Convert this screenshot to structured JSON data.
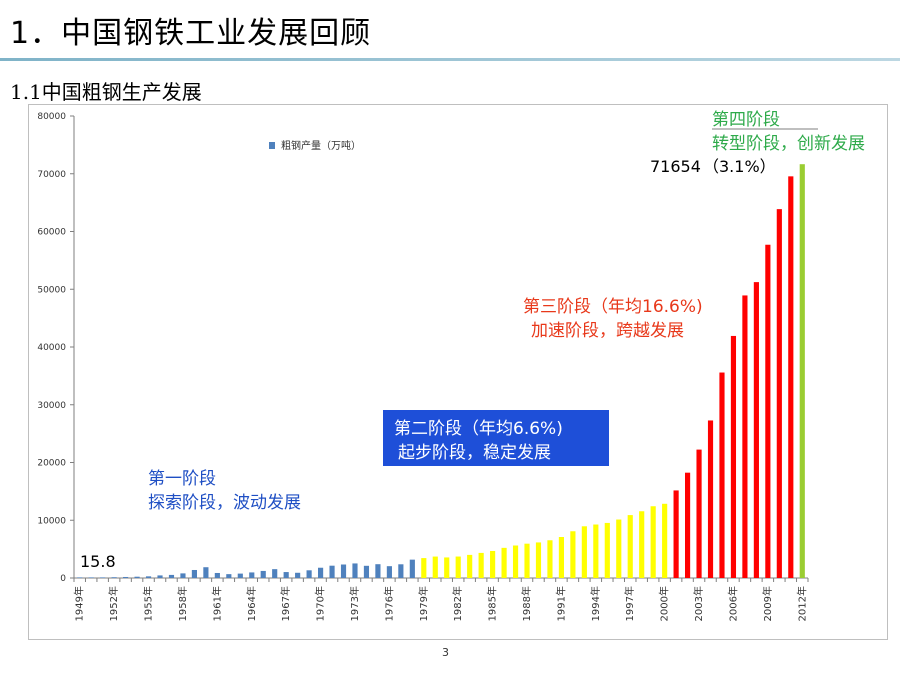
{
  "slide": {
    "title": "1．中国钢铁工业发展回顾",
    "subtitle": "1.1中国粗钢生产发展",
    "page_number": "3"
  },
  "chart_data": {
    "type": "bar",
    "legend": {
      "label": "粗钢产量（万吨）",
      "position": "top",
      "color": "#4f81bd"
    },
    "ylim": [
      0,
      80000
    ],
    "yticks": [
      0,
      10000,
      20000,
      30000,
      40000,
      50000,
      60000,
      70000,
      80000
    ],
    "grid": false,
    "xtick_labels": [
      "1949年",
      "1952年",
      "1955年",
      "1958年",
      "1961年",
      "1964年",
      "1967年",
      "1970年",
      "1973年",
      "1976年",
      "1979年",
      "1982年",
      "1985年",
      "1988年",
      "1991年",
      "1994年",
      "1997年",
      "2000年",
      "2003年",
      "2006年",
      "2009年",
      "2012年"
    ],
    "years": [
      1949,
      1950,
      1951,
      1952,
      1953,
      1954,
      1955,
      1956,
      1957,
      1958,
      1959,
      1960,
      1961,
      1962,
      1963,
      1964,
      1965,
      1966,
      1967,
      1968,
      1969,
      1970,
      1971,
      1972,
      1973,
      1974,
      1975,
      1976,
      1977,
      1978,
      1979,
      1980,
      1981,
      1982,
      1983,
      1984,
      1985,
      1986,
      1987,
      1988,
      1989,
      1990,
      1991,
      1992,
      1993,
      1994,
      1995,
      1996,
      1997,
      1998,
      1999,
      2000,
      2001,
      2002,
      2003,
      2004,
      2005,
      2006,
      2007,
      2008,
      2009,
      2010,
      2011,
      2012
    ],
    "values": [
      15.8,
      61,
      90,
      135,
      177,
      223,
      285,
      447,
      535,
      800,
      1387,
      1866,
      870,
      667,
      762,
      964,
      1223,
      1532,
      1029,
      904,
      1333,
      1779,
      2132,
      2338,
      2522,
      2112,
      2390,
      2046,
      2374,
      3178,
      3448,
      3712,
      3560,
      3716,
      4002,
      4347,
      4679,
      5221,
      5628,
      5943,
      6159,
      6535,
      7100,
      8094,
      8954,
      9261,
      9536,
      10124,
      10891,
      11559,
      12426,
      12850,
      15163,
      18237,
      22234,
      27280,
      35579,
      41915,
      48929,
      51234,
      57707,
      63874,
      69550,
      71654
    ],
    "phases": [
      {
        "name": "第一阶段",
        "desc": "探索阶段，波动发展",
        "from": 1949,
        "to": 1978,
        "color": "#4f81bd",
        "label_color": "#1f4fc4"
      },
      {
        "name": "第二阶段（年均6.6%)",
        "desc": "起步阶段，稳定发展",
        "from": 1979,
        "to": 2000,
        "color": "#ffff00",
        "label_color": "#ffffff",
        "label_bg": "#1e4fd8"
      },
      {
        "name": "第三阶段（年均16.6%)",
        "desc": "加速阶段，跨越发展",
        "from": 2001,
        "to": 2011,
        "color": "#ff0000",
        "label_color": "#e8381a"
      },
      {
        "name": "第四阶段",
        "desc": "转型阶段，创新发展",
        "from": 2012,
        "to": 2012,
        "color": "#9acd32",
        "label_color": "#2eaa4a"
      }
    ],
    "annotations": {
      "first_value": "15.8",
      "last_value": "71654",
      "last_growth": "（3.1%）"
    }
  }
}
